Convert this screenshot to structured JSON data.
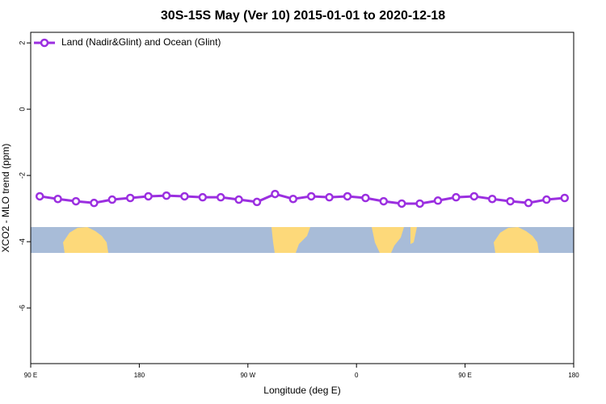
{
  "chart_data": {
    "type": "line",
    "title": "30S-15S May (Ver 10)   2015-01-01 to 2020-12-18",
    "x_label": "Longitude (deg E)",
    "y_label": "XCO2 - MLO trend (ppm)",
    "x": [
      97.5,
      112.5,
      127.5,
      142.5,
      157.5,
      172.5,
      187.5,
      202.5,
      217.5,
      232.5,
      247.5,
      262.5,
      277.5,
      292.5,
      307.5,
      322.5,
      337.5,
      352.5,
      367.5,
      382.5,
      397.5,
      412.5,
      427.5,
      442.5,
      457.5,
      472.5,
      487.5,
      502.5,
      517.5,
      532.5
    ],
    "series": [
      {
        "name": "Land (Nadir&Glint) and Ocean (Glint)",
        "color": "#9b2fe0",
        "values": [
          -2.63,
          -2.71,
          -2.78,
          -2.83,
          -2.73,
          -2.68,
          -2.63,
          -2.61,
          -2.63,
          -2.66,
          -2.66,
          -2.73,
          -2.8,
          -2.56,
          -2.71,
          -2.63,
          -2.66,
          -2.63,
          -2.68,
          -2.78,
          -2.85,
          -2.85,
          -2.76,
          -2.66,
          -2.63,
          -2.71,
          -2.78,
          -2.83,
          -2.73,
          -2.68
        ]
      }
    ],
    "xlim": [
      90,
      540
    ],
    "xticks": [
      {
        "value": 90,
        "label": "90 E"
      },
      180,
      {
        "value": 270,
        "label": "90 W"
      },
      {
        "value": 360,
        "label": "0"
      },
      {
        "value": 450,
        "label": "90 E"
      },
      {
        "value": 540,
        "label": "180"
      }
    ],
    "ylim": [
      -7.68,
      2.32
    ],
    "yticks": [
      -6,
      -4,
      -2,
      0,
      2
    ],
    "legend": "top-left"
  }
}
